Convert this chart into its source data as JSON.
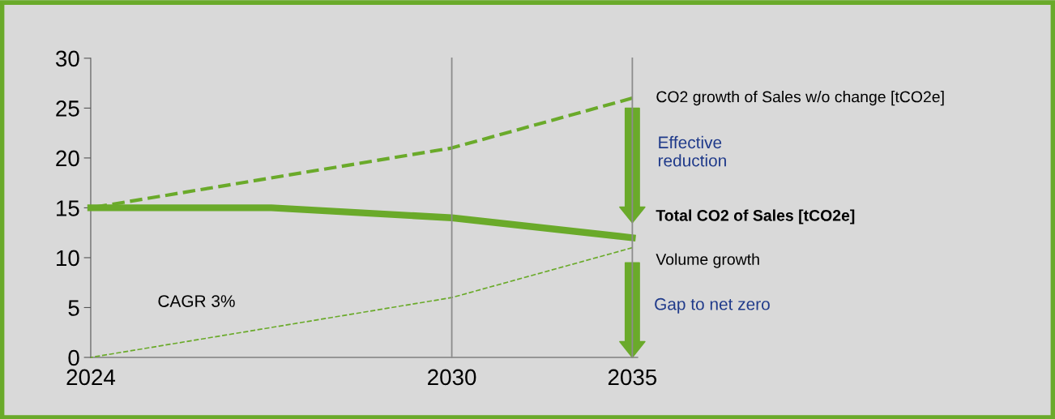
{
  "chart_data": {
    "type": "line",
    "categories": [
      "2024",
      null,
      "2030",
      "2035"
    ],
    "series": [
      {
        "name": "CO2 growth of Sales w/o change [tCO2e]",
        "color": "#6aaa2a",
        "line_style": "dashed",
        "values": [
          15,
          18,
          21,
          26
        ]
      },
      {
        "name": "Total CO2 of Sales [tCO2e]",
        "color": "#6aaa2a",
        "line_style": "solid",
        "values": [
          15,
          15,
          14,
          12
        ]
      },
      {
        "name": "Volume growth",
        "color": "#6aaa2a",
        "line_style": "dashed",
        "values": [
          0,
          3,
          6,
          11
        ]
      }
    ],
    "ylim": [
      0,
      30
    ],
    "yticks": [
      0,
      5,
      10,
      15,
      20,
      25,
      30
    ],
    "ref_lines": [
      {
        "axis": "x",
        "value": "2030",
        "color": "#8c8c8c"
      },
      {
        "axis": "x",
        "value": "2035",
        "color": "#8c8c8c"
      }
    ],
    "annotations": [
      "Effective reduction",
      "Gap to net zero",
      "CAGR 3%"
    ],
    "grid": false,
    "legend": false,
    "marker": "none"
  }
}
